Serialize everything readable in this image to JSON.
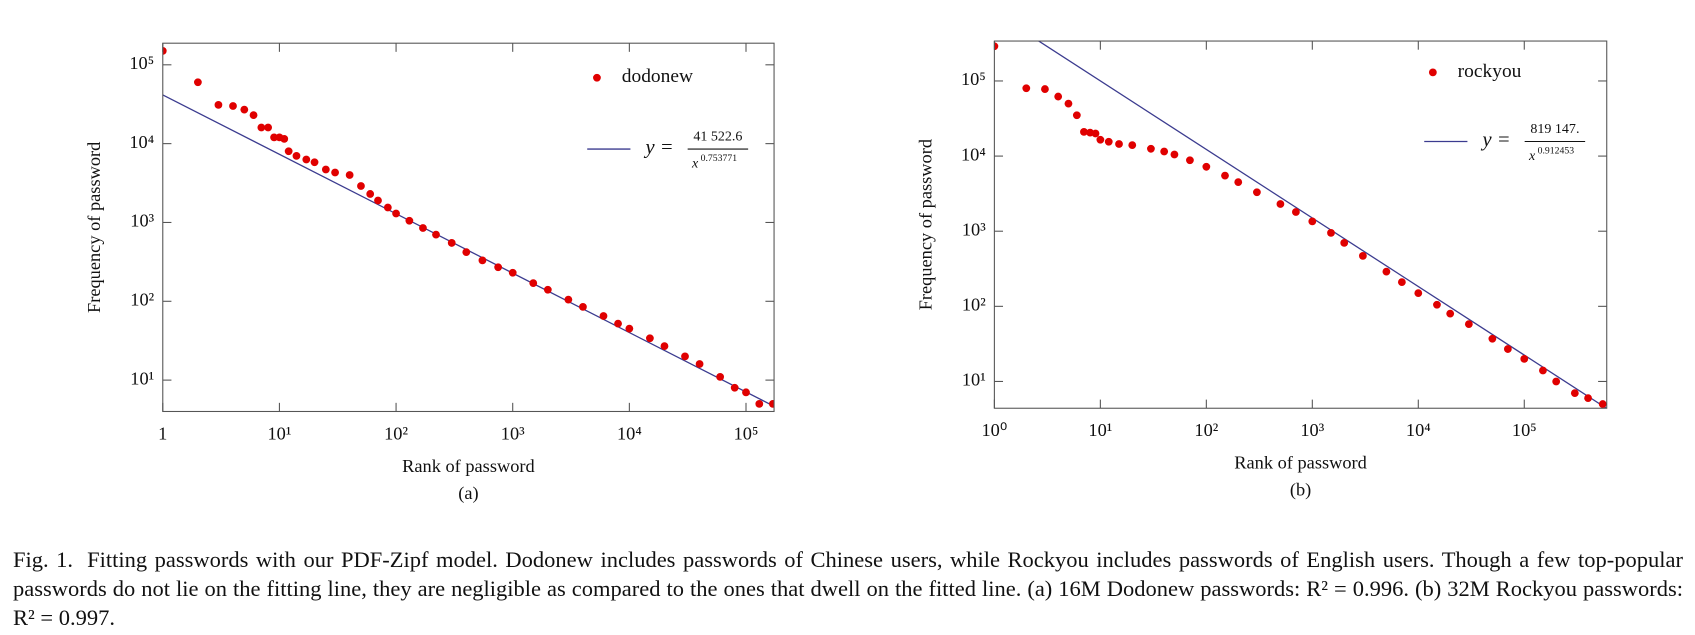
{
  "chart_data": [
    {
      "type": "scatter",
      "subcaption": "(a)",
      "xlabel": "Rank of password",
      "ylabel": "Frequency of password",
      "log_x": true,
      "log_y": true,
      "xlim": [
        1,
        174000
      ],
      "ylim": [
        4,
        188000
      ],
      "xticks": [
        1,
        {
          "value": 10,
          "label": "10¹"
        },
        {
          "value": 100,
          "label": "10²"
        },
        {
          "value": 1000,
          "label": "10³"
        },
        {
          "value": 10000,
          "label": "10⁴"
        },
        {
          "value": 100000,
          "label": "10⁵"
        }
      ],
      "yticks": [
        {
          "value": 10,
          "label": "10¹"
        },
        {
          "value": 100,
          "label": "10²"
        },
        {
          "value": 1000,
          "label": "10³"
        },
        {
          "value": 10000,
          "label": "10⁴"
        },
        {
          "value": 100000,
          "label": "10⁵"
        }
      ],
      "series": [
        {
          "name": "dodonew",
          "color": "#e00000",
          "x": [
            1,
            2,
            3,
            4,
            5,
            6,
            7,
            8,
            9,
            10,
            11,
            12,
            14,
            17,
            20,
            25,
            30,
            40,
            50,
            60,
            70,
            85,
            100,
            130,
            170,
            220,
            300,
            400,
            550,
            750,
            1000,
            1500,
            2000,
            3000,
            4000,
            6000,
            8000,
            10000,
            15000,
            20000,
            30000,
            40000,
            60000,
            80000,
            100000,
            130000,
            170000
          ],
          "values": [
            150000,
            60000,
            31000,
            30000,
            27000,
            23000,
            16000,
            16000,
            12000,
            12000,
            11500,
            8000,
            7000,
            6300,
            5800,
            4700,
            4300,
            4000,
            2900,
            2300,
            1900,
            1550,
            1300,
            1050,
            850,
            700,
            550,
            420,
            330,
            270,
            230,
            170,
            140,
            105,
            85,
            65,
            52,
            45,
            34,
            27,
            20,
            16,
            11,
            8,
            7,
            5,
            5
          ]
        }
      ],
      "fit": {
        "lhs": "y =",
        "base": "x",
        "coefficient": {
          "value": 41522.6,
          "label": "41 522.6"
        },
        "exponent": 0.753771,
        "color": "#3b3b8f"
      }
    },
    {
      "type": "scatter",
      "subcaption": "(b)",
      "xlabel": "Rank of password",
      "ylabel": "Frequency of password",
      "log_x": true,
      "log_y": true,
      "xlim": [
        1,
        600000
      ],
      "ylim": [
        4.4,
        340000
      ],
      "xticks": [
        {
          "value": 1,
          "label": "10⁰"
        },
        {
          "value": 10,
          "label": "10¹"
        },
        {
          "value": 100,
          "label": "10²"
        },
        {
          "value": 1000,
          "label": "10³"
        },
        {
          "value": 10000,
          "label": "10⁴"
        },
        {
          "value": 100000,
          "label": "10⁵"
        }
      ],
      "yticks": [
        {
          "value": 10,
          "label": "10¹"
        },
        {
          "value": 100,
          "label": "10²"
        },
        {
          "value": 1000,
          "label": "10³"
        },
        {
          "value": 10000,
          "label": "10⁴"
        },
        {
          "value": 100000,
          "label": "10⁵"
        }
      ],
      "series": [
        {
          "name": "rockyou",
          "color": "#e00000",
          "x": [
            1,
            2,
            3,
            4,
            5,
            6,
            7,
            8,
            9,
            10,
            12,
            15,
            20,
            30,
            40,
            50,
            70,
            100,
            150,
            200,
            300,
            500,
            700,
            1000,
            1500,
            2000,
            3000,
            5000,
            7000,
            10000,
            15000,
            20000,
            30000,
            50000,
            70000,
            100000,
            150000,
            200000,
            300000,
            400000,
            550000
          ],
          "values": [
            290000,
            80000,
            78000,
            62000,
            50000,
            35000,
            21000,
            20500,
            20000,
            16500,
            15500,
            14500,
            14000,
            12500,
            11500,
            10500,
            8800,
            7200,
            5500,
            4500,
            3300,
            2300,
            1800,
            1350,
            950,
            700,
            470,
            290,
            210,
            150,
            105,
            80,
            58,
            37,
            27,
            20,
            14,
            10,
            7,
            6,
            5
          ]
        }
      ],
      "fit": {
        "lhs": "y =",
        "base": "x",
        "coefficient": {
          "value": 819147,
          "label": "819 147."
        },
        "exponent": 0.912453,
        "color": "#3b3b8f"
      }
    }
  ],
  "caption": {
    "label": "Fig. 1.",
    "text": "Fitting passwords with our PDF-Zipf model. Dodonew includes passwords of Chinese users, while Rockyou includes passwords of English users. Though a few top-popular passwords do not lie on the fitting line, they are negligible as compared to the ones that dwell on the fitted line. (a) 16M Dodonew passwords: R² = 0.996. (b) 32M Rockyou passwords: R² = 0.997."
  }
}
